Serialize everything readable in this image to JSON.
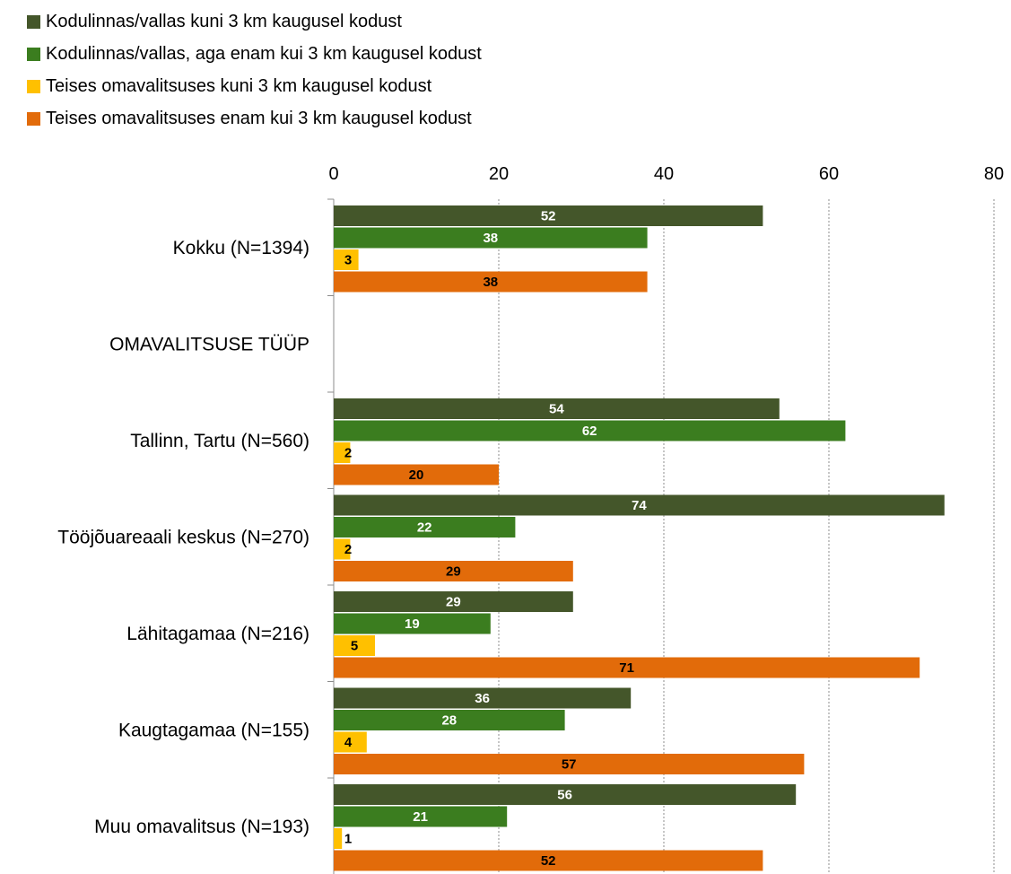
{
  "chart_data": {
    "type": "bar",
    "orientation": "horizontal",
    "legend_position": "top",
    "xlim": [
      0,
      80
    ],
    "x_ticks": [
      "0",
      "20",
      "40",
      "60",
      "80"
    ],
    "grid": "vertical dotted",
    "categories": [
      "Kokku (N=1394)",
      "OMAVALITSUSE TÜÜP",
      "Tallinn, Tartu (N=560)",
      "Tööjõuareaali keskus (N=270)",
      "Lähitagamaa (N=216)",
      "Kaugtagamaa (N=155)",
      "Muu omavalitsus (N=193)"
    ],
    "series": [
      {
        "name": "Kodulinnas/vallas kuni 3 km kaugusel kodust",
        "color": "#44562a",
        "label_color": "#ffffff",
        "values": [
          52,
          null,
          54,
          74,
          29,
          36,
          56
        ]
      },
      {
        "name": "Kodulinnas/vallas, aga enam kui 3 km kaugusel kodust",
        "color": "#3b7d1f",
        "label_color": "#ffffff",
        "values": [
          38,
          null,
          62,
          22,
          19,
          28,
          21
        ]
      },
      {
        "name": "Teises omavalitsuses kuni 3 km kaugusel kodust",
        "color": "#ffc000",
        "label_color": "#000000",
        "values": [
          3,
          null,
          2,
          2,
          5,
          4,
          1
        ]
      },
      {
        "name": "Teises omavalitsuses enam kui 3 km kaugusel kodust",
        "color": "#e26b0a",
        "label_color": "#000000",
        "values": [
          38,
          null,
          20,
          29,
          71,
          57,
          52
        ]
      }
    ]
  }
}
